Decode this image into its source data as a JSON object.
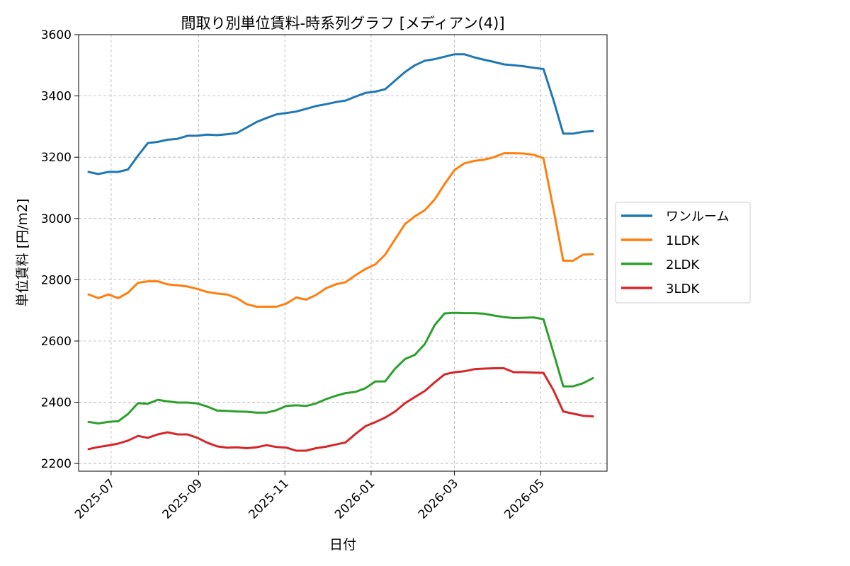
{
  "chart_data": {
    "type": "line",
    "title": "間取り別単位賃料-時系列グラフ [メディアン(4)]",
    "xlabel": "日付",
    "ylabel": "単位賃料 [円/m2]",
    "ylim": [
      2175,
      3600
    ],
    "yticks": [
      2200,
      2400,
      2600,
      2800,
      3000,
      3200,
      3400,
      3600
    ],
    "xlim": [
      "2025-06-08",
      "2026-06-17"
    ],
    "xticks": [
      "2025-07-01",
      "2025-09-01",
      "2025-11-01",
      "2026-01-01",
      "2026-03-01",
      "2026-05-01"
    ],
    "xtick_labels": [
      "2025-07",
      "2025-09",
      "2025-11",
      "2026-01",
      "2026-03",
      "2026-05"
    ],
    "grid": true,
    "legend_position": "right-outside",
    "x": [
      "2025-06-15",
      "2025-06-22",
      "2025-06-29",
      "2025-07-06",
      "2025-07-13",
      "2025-07-20",
      "2025-07-27",
      "2025-08-03",
      "2025-08-10",
      "2025-08-17",
      "2025-08-24",
      "2025-08-31",
      "2025-09-07",
      "2025-09-14",
      "2025-09-21",
      "2025-09-28",
      "2025-10-05",
      "2025-10-12",
      "2025-10-19",
      "2025-10-26",
      "2025-11-02",
      "2025-11-09",
      "2025-11-16",
      "2025-11-23",
      "2025-11-30",
      "2025-12-07",
      "2025-12-14",
      "2025-12-21",
      "2025-12-28",
      "2026-01-04",
      "2026-01-11",
      "2026-01-18",
      "2026-01-25",
      "2026-02-01",
      "2026-02-08",
      "2026-02-15",
      "2026-02-22",
      "2026-03-01",
      "2026-03-08",
      "2026-03-15",
      "2026-03-22",
      "2026-03-29",
      "2026-04-05",
      "2026-04-12",
      "2026-04-19",
      "2026-04-26",
      "2026-05-03",
      "2026-05-10",
      "2026-05-17",
      "2026-05-24",
      "2026-05-31",
      "2026-06-07"
    ],
    "series": [
      {
        "name": "ワンルーム",
        "color": "#1f77b4",
        "values": [
          3152,
          3145,
          3152,
          3152,
          3160,
          3205,
          3246,
          3250,
          3257,
          3260,
          3270,
          3270,
          3274,
          3272,
          3275,
          3279,
          3297,
          3315,
          3328,
          3340,
          3344,
          3349,
          3358,
          3367,
          3373,
          3380,
          3385,
          3398,
          3410,
          3414,
          3422,
          3450,
          3478,
          3500,
          3515,
          3520,
          3528,
          3536,
          3536,
          3526,
          3518,
          3511,
          3503,
          3500,
          3497,
          3492,
          3488,
          3388,
          3277,
          3277,
          3283,
          3285
        ]
      },
      {
        "name": "1LDK",
        "color": "#ff7f0e",
        "values": [
          2752,
          2740,
          2752,
          2740,
          2758,
          2790,
          2795,
          2795,
          2785,
          2782,
          2778,
          2770,
          2760,
          2755,
          2752,
          2740,
          2720,
          2712,
          2712,
          2712,
          2722,
          2742,
          2735,
          2750,
          2772,
          2785,
          2792,
          2815,
          2835,
          2850,
          2882,
          2932,
          2982,
          3007,
          3027,
          3062,
          3112,
          3158,
          3180,
          3188,
          3192,
          3200,
          3213,
          3213,
          3212,
          3208,
          3197,
          3032,
          2862,
          2862,
          2882,
          2883
        ]
      },
      {
        "name": "2LDK",
        "color": "#2ca02c",
        "values": [
          2336,
          2331,
          2336,
          2338,
          2362,
          2397,
          2395,
          2408,
          2403,
          2399,
          2399,
          2396,
          2386,
          2373,
          2372,
          2370,
          2369,
          2366,
          2366,
          2374,
          2388,
          2390,
          2388,
          2396,
          2410,
          2421,
          2430,
          2434,
          2446,
          2468,
          2468,
          2510,
          2541,
          2555,
          2590,
          2652,
          2690,
          2692,
          2691,
          2691,
          2689,
          2683,
          2678,
          2675,
          2676,
          2677,
          2671,
          2563,
          2452,
          2452,
          2462,
          2479
        ]
      },
      {
        "name": "3LDK",
        "color": "#d62728",
        "values": [
          2247,
          2254,
          2259,
          2265,
          2275,
          2290,
          2284,
          2295,
          2302,
          2295,
          2295,
          2284,
          2268,
          2256,
          2252,
          2253,
          2250,
          2253,
          2260,
          2254,
          2252,
          2242,
          2242,
          2250,
          2255,
          2262,
          2269,
          2297,
          2322,
          2335,
          2350,
          2370,
          2397,
          2417,
          2437,
          2465,
          2491,
          2498,
          2501,
          2508,
          2510,
          2511,
          2511,
          2498,
          2498,
          2497,
          2496,
          2440,
          2370,
          2363,
          2356,
          2354
        ]
      }
    ]
  }
}
